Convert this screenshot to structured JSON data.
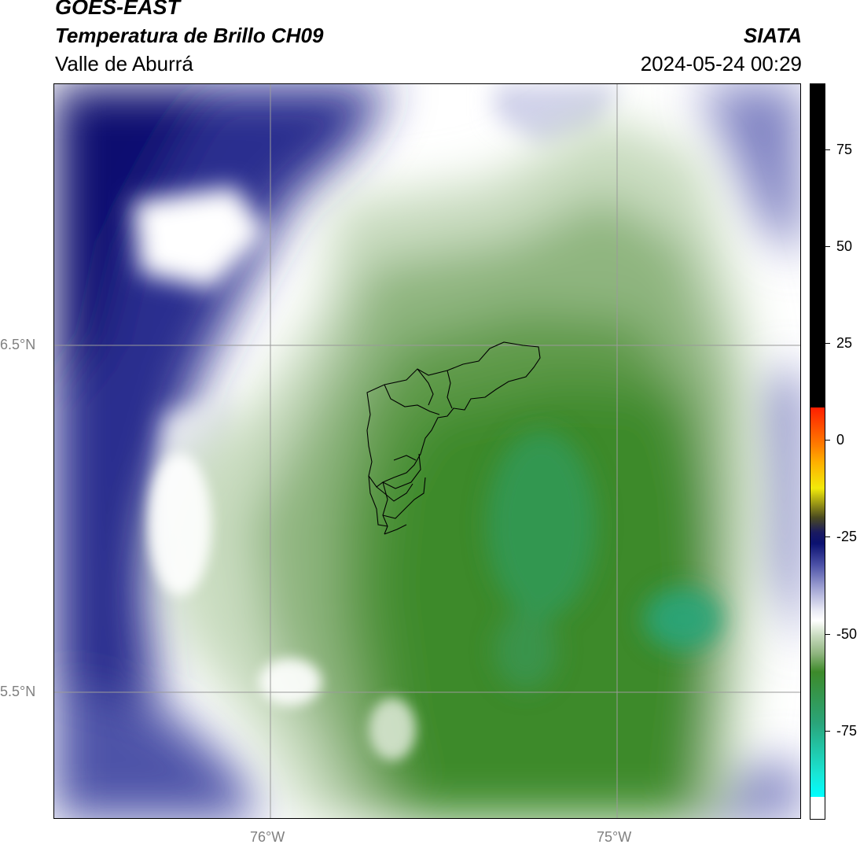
{
  "header": {
    "title": "GOES-EAST",
    "subtitle": "Temperatura de Brillo CH09",
    "region": "Valle de Aburrá",
    "organization": "SIATA",
    "datetime": "2024-05-24 00:29"
  },
  "map": {
    "lat_labels": [
      "6.5°N",
      "5.5°N"
    ],
    "lon_labels": [
      "76°W",
      "75°W"
    ]
  },
  "colorbar": {
    "ticks": [
      "75",
      "50",
      "25",
      "0",
      "-25",
      "-50",
      "-75"
    ],
    "colors": {
      "cyan": "#19e6d6",
      "teal": "#2aa57a",
      "green_dark": "#3d8a2a",
      "green_light": "#c9dcc0",
      "white": "#ffffff",
      "lavender": "#aeb0d8",
      "navy": "#0b1170",
      "olive": "#4a4a20",
      "yellow": "#f2ea0a",
      "orange": "#ff9a00",
      "red": "#ff1e00",
      "black": "#000000"
    }
  }
}
